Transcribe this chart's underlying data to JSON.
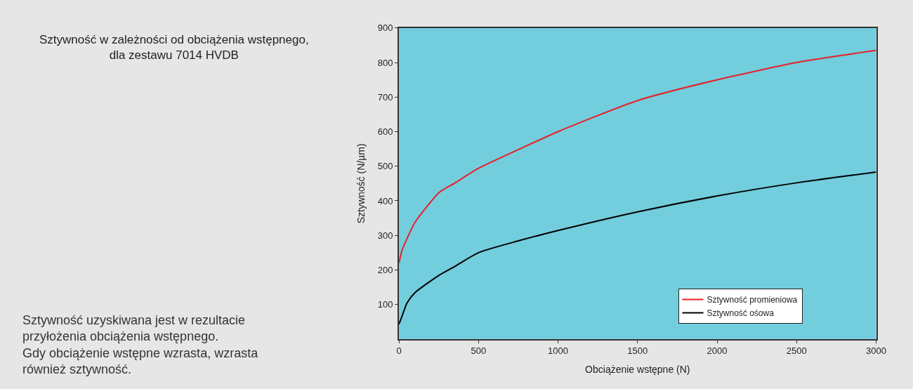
{
  "chart_data": {
    "type": "line",
    "title": "Sztywność w zależności od obciążenia wstępnego,\ndla zestawu 7014 HVDB",
    "xlabel": "Obciążenie wstępne (N)",
    "ylabel": "Sztywność (N/µm)",
    "annotations": [
      "Sztywność uzyskiwana jest w rezultacie\nprzyłożenia obciążenia wstępnego.\nGdy obciążenie wstępne wzrasta, wzrasta\nrównież sztywność."
    ],
    "x": [
      0,
      20,
      50,
      100,
      250,
      350,
      500,
      750,
      1000,
      1500,
      2000,
      2500,
      3000
    ],
    "series": [
      {
        "name": "Sztywność promieniowa",
        "color": "#e8202a",
        "values": [
          220,
          258,
          290,
          337,
          423,
          451,
          494,
          548,
          600,
          690,
          750,
          800,
          835
        ]
      },
      {
        "name": "Sztywność ośowa",
        "color": "#000000",
        "values": [
          43,
          67,
          104,
          134,
          184,
          210,
          250,
          284,
          314,
          368,
          414,
          452,
          483
        ]
      }
    ],
    "xlim": [
      0,
      3000
    ],
    "xticks": [
      0,
      500,
      1000,
      1500,
      2000,
      2500,
      3000
    ],
    "ylim": [
      0,
      900
    ],
    "yticks": [
      100,
      200,
      300,
      400,
      500,
      600,
      700,
      800,
      900
    ],
    "grid": false,
    "legend": "bottom right",
    "marker": "none",
    "line_style": "solid"
  }
}
